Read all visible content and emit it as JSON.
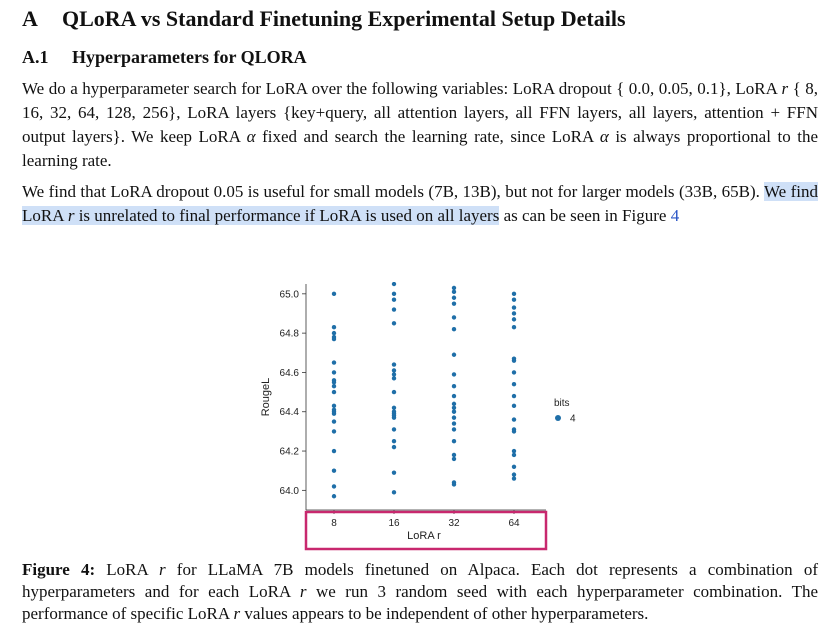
{
  "section": {
    "number": "A",
    "title": "QLoRA vs Standard Finetuning Experimental Setup Details"
  },
  "subsection": {
    "number": "A.1",
    "title": "Hyperparameters for QLORA"
  },
  "para1": {
    "t1": "We do a hyperparameter search for LoRA over the following variables: LoRA dropout { 0.0, 0.05, 0.1}, LoRA ",
    "r1": "r",
    "t2": " { 8, 16, 32, 64, 128, 256}, LoRA layers {key+query, all attention layers, all FFN layers, all layers, attention + FFN output layers}. We keep LoRA ",
    "alpha1": "α",
    "t3": " fixed and search the learning rate, since LoRA ",
    "alpha2": "α",
    "t4": " is always proportional to the learning rate."
  },
  "para2": {
    "t1": "We find that LoRA dropout 0.05 is useful for small models (7B, 13B), but not for larger models (33B, 65B). ",
    "h1": "We find LoRA ",
    "hr": "r",
    "h2": " is unrelated to final performance if LoRA is used on all layers",
    "t2": " as can be seen in Figure ",
    "ref": "4"
  },
  "caption": {
    "label": "Figure 4:",
    "t1": " LoRA ",
    "r1": "r",
    "t2": " for LLaMA 7B models finetuned on Alpaca. Each dot represents a combination of hyperparameters and for each LoRA ",
    "r2": "r",
    "t3": " we run 3 random seed with each hyperparameter combination. The performance of specific LoRA ",
    "r3": "r",
    "t4": " values appears to be independent of other hyperparameters."
  },
  "colors": {
    "dot": "#1f6fa8",
    "highlight": "#cfe0f7",
    "box": "#c8286e",
    "link": "#2a55c6"
  },
  "chart_data": {
    "type": "scatter",
    "xlabel": "LoRA r",
    "ylabel": "RougeL",
    "categories": [
      "8",
      "16",
      "32",
      "64"
    ],
    "yticks": [
      "64.0",
      "64.2",
      "64.4",
      "64.6",
      "64.8",
      "65.0"
    ],
    "ylim": [
      63.9,
      65.05
    ],
    "grid": false,
    "legend": {
      "title": "bits",
      "entries": [
        "4"
      ],
      "placement": "right"
    },
    "series": [
      {
        "name": "4",
        "points": [
          {
            "x": "8",
            "y": 65.0
          },
          {
            "x": "8",
            "y": 64.83
          },
          {
            "x": "8",
            "y": 64.8
          },
          {
            "x": "8",
            "y": 64.78
          },
          {
            "x": "8",
            "y": 64.77
          },
          {
            "x": "8",
            "y": 64.65
          },
          {
            "x": "8",
            "y": 64.6
          },
          {
            "x": "8",
            "y": 64.56
          },
          {
            "x": "8",
            "y": 64.55
          },
          {
            "x": "8",
            "y": 64.53
          },
          {
            "x": "8",
            "y": 64.5
          },
          {
            "x": "8",
            "y": 64.43
          },
          {
            "x": "8",
            "y": 64.41
          },
          {
            "x": "8",
            "y": 64.4
          },
          {
            "x": "8",
            "y": 64.39
          },
          {
            "x": "8",
            "y": 64.35
          },
          {
            "x": "8",
            "y": 64.3
          },
          {
            "x": "8",
            "y": 64.2
          },
          {
            "x": "8",
            "y": 64.1
          },
          {
            "x": "8",
            "y": 64.02
          },
          {
            "x": "8",
            "y": 63.97
          },
          {
            "x": "16",
            "y": 65.05
          },
          {
            "x": "16",
            "y": 65.0
          },
          {
            "x": "16",
            "y": 64.97
          },
          {
            "x": "16",
            "y": 64.92
          },
          {
            "x": "16",
            "y": 64.85
          },
          {
            "x": "16",
            "y": 64.64
          },
          {
            "x": "16",
            "y": 64.61
          },
          {
            "x": "16",
            "y": 64.59
          },
          {
            "x": "16",
            "y": 64.57
          },
          {
            "x": "16",
            "y": 64.5
          },
          {
            "x": "16",
            "y": 64.42
          },
          {
            "x": "16",
            "y": 64.4
          },
          {
            "x": "16",
            "y": 64.39
          },
          {
            "x": "16",
            "y": 64.38
          },
          {
            "x": "16",
            "y": 64.37
          },
          {
            "x": "16",
            "y": 64.31
          },
          {
            "x": "16",
            "y": 64.25
          },
          {
            "x": "16",
            "y": 64.22
          },
          {
            "x": "16",
            "y": 64.09
          },
          {
            "x": "16",
            "y": 63.99
          },
          {
            "x": "32",
            "y": 65.03
          },
          {
            "x": "32",
            "y": 65.01
          },
          {
            "x": "32",
            "y": 64.98
          },
          {
            "x": "32",
            "y": 64.95
          },
          {
            "x": "32",
            "y": 64.88
          },
          {
            "x": "32",
            "y": 64.82
          },
          {
            "x": "32",
            "y": 64.69
          },
          {
            "x": "32",
            "y": 64.59
          },
          {
            "x": "32",
            "y": 64.53
          },
          {
            "x": "32",
            "y": 64.48
          },
          {
            "x": "32",
            "y": 64.44
          },
          {
            "x": "32",
            "y": 64.42
          },
          {
            "x": "32",
            "y": 64.4
          },
          {
            "x": "32",
            "y": 64.37
          },
          {
            "x": "32",
            "y": 64.34
          },
          {
            "x": "32",
            "y": 64.31
          },
          {
            "x": "32",
            "y": 64.25
          },
          {
            "x": "32",
            "y": 64.18
          },
          {
            "x": "32",
            "y": 64.16
          },
          {
            "x": "32",
            "y": 64.04
          },
          {
            "x": "32",
            "y": 64.03
          },
          {
            "x": "64",
            "y": 65.0
          },
          {
            "x": "64",
            "y": 64.97
          },
          {
            "x": "64",
            "y": 64.93
          },
          {
            "x": "64",
            "y": 64.9
          },
          {
            "x": "64",
            "y": 64.87
          },
          {
            "x": "64",
            "y": 64.83
          },
          {
            "x": "64",
            "y": 64.67
          },
          {
            "x": "64",
            "y": 64.66
          },
          {
            "x": "64",
            "y": 64.6
          },
          {
            "x": "64",
            "y": 64.54
          },
          {
            "x": "64",
            "y": 64.48
          },
          {
            "x": "64",
            "y": 64.43
          },
          {
            "x": "64",
            "y": 64.36
          },
          {
            "x": "64",
            "y": 64.31
          },
          {
            "x": "64",
            "y": 64.3
          },
          {
            "x": "64",
            "y": 64.2
          },
          {
            "x": "64",
            "y": 64.18
          },
          {
            "x": "64",
            "y": 64.12
          },
          {
            "x": "64",
            "y": 64.08
          },
          {
            "x": "64",
            "y": 64.06
          }
        ]
      }
    ]
  }
}
